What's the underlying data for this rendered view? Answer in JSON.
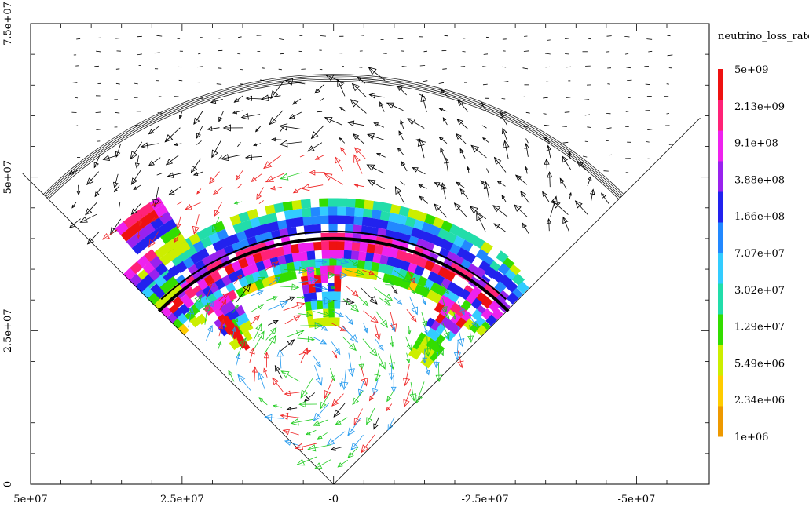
{
  "chart_data": {
    "type": "heatmap",
    "colorbar": {
      "title": "neutrino_loss_rate",
      "scale": "log",
      "range": [
        1000000,
        5000000000
      ],
      "tick_labels": [
        "5e+09",
        "2.13e+09",
        "9.1e+08",
        "3.88e+08",
        "1.66e+08",
        "7.07e+07",
        "3.02e+07",
        "1.29e+07",
        "5.49e+06",
        "2.34e+06",
        "1e+06"
      ],
      "colors": [
        "#ee9900",
        "#ffcc00",
        "#ccee00",
        "#33dd00",
        "#22ddaa",
        "#33ccff",
        "#2288ff",
        "#2222ee",
        "#9922ee",
        "#ee22ee",
        "#ff2277",
        "#ee1111"
      ]
    },
    "x_axis": {
      "tick_labels": [
        "5e+07",
        "2.5e+07",
        "-0",
        "-2.5e+07",
        "-5e+07"
      ],
      "xlim": [
        50000000,
        -62000000
      ]
    },
    "y_axis": {
      "tick_labels": [
        "0",
        "2.5e+07",
        "5e+07",
        "7.5e+07"
      ],
      "ylim": [
        0,
        75000000
      ]
    },
    "wedge": {
      "apex": [
        0,
        0
      ],
      "half_angle_deg": 45,
      "outer_radius": 67000000
    },
    "shock_front_radius": 67000000,
    "inner_boundary_radius": 40000000,
    "vector_colors": [
      "#000000",
      "#ee2222",
      "#22cc22",
      "#2299ee"
    ]
  }
}
